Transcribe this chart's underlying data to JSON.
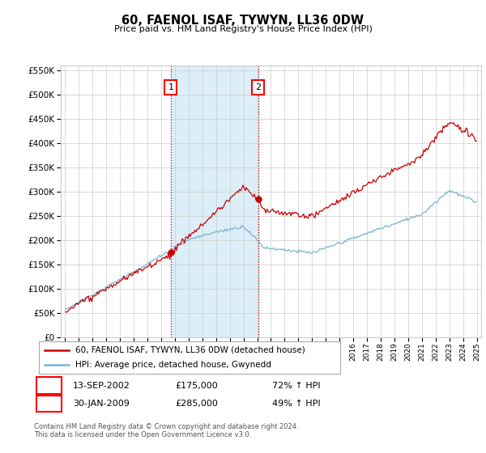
{
  "title": "60, FAENOL ISAF, TYWYN, LL36 0DW",
  "subtitle": "Price paid vs. HM Land Registry's House Price Index (HPI)",
  "legend_line1": "60, FAENOL ISAF, TYWYN, LL36 0DW (detached house)",
  "legend_line2": "HPI: Average price, detached house, Gwynedd",
  "table_rows": [
    {
      "num": "1",
      "date": "13-SEP-2002",
      "price": "£175,000",
      "change": "72% ↑ HPI"
    },
    {
      "num": "2",
      "date": "30-JAN-2009",
      "price": "£285,000",
      "change": "49% ↑ HPI"
    }
  ],
  "footnote1": "Contains HM Land Registry data © Crown copyright and database right 2024.",
  "footnote2": "This data is licensed under the Open Government Licence v3.0.",
  "sale1_x": 2002.71,
  "sale1_y": 175000,
  "sale2_x": 2009.08,
  "sale2_y": 285000,
  "hpi_color": "#7ab3d4",
  "price_color": "#cc0000",
  "shade_color": "#dceef8",
  "background_color": "#ffffff",
  "grid_color": "#cccccc",
  "ylim": [
    0,
    560000
  ],
  "xlim_start": 1994.7,
  "xlim_end": 2025.3,
  "yticks": [
    0,
    50000,
    100000,
    150000,
    200000,
    250000,
    300000,
    350000,
    400000,
    450000,
    500000,
    550000
  ]
}
